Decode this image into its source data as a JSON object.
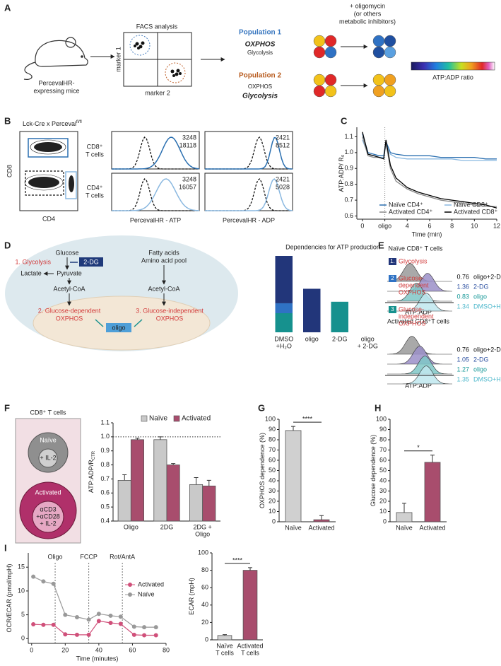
{
  "figure": {
    "A": {
      "letter": "A",
      "mouse": [
        "PercevalHR-",
        "expressing mice"
      ],
      "facs": "FACS analysis",
      "marker1": "marker 1",
      "marker2": "marker 2",
      "pop1": {
        "title": "Population 1",
        "line1": "OXPHOS",
        "line2": "Glycolysis"
      },
      "pop2": {
        "title": "Population 2",
        "line1": "OXPHOS",
        "line2": "Glycolysis"
      },
      "inhibitor": [
        "+ oligomycin",
        "(or others",
        "metabolic inhibitors)"
      ],
      "scale_label": "ATP:ADP ratio"
    },
    "B": {
      "letter": "B",
      "title": "Lck-Cre x Perceval",
      "title_sup": "fl/fl",
      "dot_y": "CD8",
      "dot_x": "CD4",
      "row1": [
        "CD8⁺",
        "T cells"
      ],
      "row2": [
        "CD4⁺",
        "T cells"
      ],
      "counts": [
        [
          3248,
          18118
        ],
        [
          2421,
          8512
        ],
        [
          3248,
          16057
        ],
        [
          2421,
          5028
        ]
      ],
      "xlabel_atp": "PercevalHR - ATP",
      "xlabel_adp": "PercevalHR - ADP"
    },
    "C": {
      "letter": "C"
    },
    "D": {
      "letter": "D",
      "glucose": "Glucose",
      "glycolysis": "1. Glycolysis",
      "two_dg": "2-DG",
      "lactate": "Lactate",
      "pyruvate": "Pyruvate",
      "acetyl1": "Acetyl-CoA",
      "fatty": "Fatty acids",
      "amino": "Amino acid pool",
      "acetyl2": "Acetyl-CoA",
      "gd": [
        "2. Glucose-dependent",
        "OXPHOS"
      ],
      "gi": [
        "3. Glucose-independent",
        "OXPHOS"
      ],
      "oligo": "oligo"
    },
    "E": {
      "letter": "E",
      "naive_title": "Naïve CD8⁺ T cells",
      "act_title": "Activated CD8⁺T cells",
      "conditions": [
        "oligo+2-DG",
        "2-DG",
        "oligo",
        "DMSO+H₂O"
      ],
      "naive_values": [
        0.76,
        1.36,
        0.83,
        1.34
      ],
      "act_values": [
        0.76,
        1.05,
        1.27,
        1.35
      ],
      "xlabel": "ATP:ADP"
    },
    "F": {
      "letter": "F",
      "box_title": "CD8⁺ T cells",
      "naive": "Naïve",
      "naive_treat": "+ IL-2",
      "activated": "Activated",
      "act_treat": [
        "αCD3",
        "+αCD28",
        "+ IL-2"
      ]
    },
    "G": {
      "letter": "G"
    },
    "H": {
      "letter": "H"
    },
    "I": {
      "letter": "I"
    }
  },
  "chart_data": [
    {
      "type": "line",
      "ylabel": "ATP:ADP/ R₀",
      "xlabel": "Time (min)",
      "x": [
        0,
        0.5,
        1,
        1.5,
        1.9,
        2.1,
        2.5,
        3,
        4,
        5,
        6,
        7,
        8,
        9,
        10,
        11,
        12
      ],
      "xlim": [
        -0.5,
        12
      ],
      "xticks": [
        0,
        {
          "value": 2,
          "label": "oligo"
        },
        4,
        6,
        8,
        10,
        12
      ],
      "ylim": [
        0.58,
        1.16
      ],
      "yticks": [
        0.6,
        0.7,
        0.8,
        0.9,
        {
          "value": 1,
          "label": "1.0"
        },
        1.1
      ],
      "label_tick_guides": true,
      "legend": "lower-right",
      "series": [
        {
          "name": "Naïve CD4⁺",
          "color": "#2a6fb0",
          "values": [
            1.12,
            1.0,
            0.99,
            0.98,
            0.98,
            1.07,
            1.0,
            0.99,
            0.98,
            0.98,
            0.98,
            0.97,
            0.97,
            0.97,
            0.97,
            0.96,
            0.96
          ]
        },
        {
          "name": "Naïve CD8⁺",
          "color": "#8ab8e0",
          "values": [
            1.08,
            0.99,
            0.98,
            0.97,
            0.97,
            1.05,
            0.99,
            0.97,
            0.96,
            0.96,
            0.96,
            0.96,
            0.96,
            0.95,
            0.95,
            0.95,
            0.95
          ]
        },
        {
          "name": "Activated CD4⁺",
          "color": "#888888",
          "values": [
            1.1,
            0.98,
            0.97,
            0.97,
            0.96,
            1.06,
            0.9,
            0.82,
            0.77,
            0.74,
            0.72,
            0.7,
            0.69,
            0.68,
            0.67,
            0.66,
            0.66
          ]
        },
        {
          "name": "Activated CD8⁺",
          "color": "#000000",
          "values": [
            1.13,
            0.99,
            0.98,
            0.97,
            0.96,
            1.08,
            0.92,
            0.84,
            0.78,
            0.75,
            0.73,
            0.71,
            0.7,
            0.69,
            0.68,
            0.67,
            0.65
          ]
        }
      ]
    },
    {
      "type": "stacked_bar",
      "title": "Dependencies for ATP production",
      "categories": [
        [
          "DMSO",
          "+H₂O"
        ],
        [
          "oligo"
        ],
        [
          "2-DG"
        ],
        [
          "oligo",
          "+ 2-DG"
        ]
      ],
      "legend": "right",
      "series": [
        {
          "badge": "1.",
          "name": [
            "Glycolysis"
          ],
          "color": "#22367a",
          "values": [
            62,
            57,
            0,
            0
          ]
        },
        {
          "badge": "2",
          "name": [
            "Glucose-",
            "dependent",
            "OXPHOS"
          ],
          "color": "#2f72c4",
          "values": [
            13,
            0,
            0,
            0
          ]
        },
        {
          "badge": "3",
          "name": [
            "Glucose-",
            "independent",
            "OXPHOS"
          ],
          "color": "#16918e",
          "values": [
            25,
            0,
            40,
            0
          ]
        }
      ]
    },
    {
      "type": "bar",
      "ylabel": "ATP:ADP/R",
      "ylabel_subscript": "CTR",
      "categories": [
        [
          "Oligo"
        ],
        [
          "2DG"
        ],
        [
          "2DG +",
          "Oligo"
        ]
      ],
      "ylim": [
        0.4,
        1.1
      ],
      "yticks": [
        0.4,
        0.5,
        0.6,
        0.7,
        0.8,
        0.9,
        {
          "value": 1,
          "label": "1.0"
        },
        1.1
      ],
      "hline": 1,
      "legend": "top",
      "series": [
        {
          "name": "Naïve",
          "color": "#c9c9c9",
          "values": [
            0.69,
            0.98,
            0.66
          ],
          "errors": [
            0.04,
            0.02,
            0.05
          ]
        },
        {
          "name": "Activated",
          "color": "#a84d6d",
          "values": [
            0.98,
            0.8,
            0.65
          ],
          "errors": [
            0.01,
            0.01,
            0.04
          ]
        }
      ]
    },
    {
      "type": "bar",
      "ylabel": "OXPHOS dependence (%)",
      "categories": [
        "Naïve",
        "Activated"
      ],
      "ylim": [
        0,
        100
      ],
      "yticks": [
        0,
        10,
        20,
        30,
        40,
        50,
        60,
        70,
        80,
        90,
        100
      ],
      "annotation": "****",
      "colors": [
        "#d0d0d0",
        "#a84d6d"
      ],
      "values": [
        89,
        2
      ],
      "errors": [
        4,
        4
      ]
    },
    {
      "type": "bar",
      "ylabel": "Glucose dependence (%)",
      "categories": [
        "Naïve",
        "Activated"
      ],
      "ylim": [
        0,
        100
      ],
      "yticks": [
        0,
        10,
        20,
        30,
        40,
        50,
        60,
        70,
        80,
        90,
        100
      ],
      "annotation": "*",
      "colors": [
        "#d0d0d0",
        "#a84d6d"
      ],
      "values": [
        9,
        58
      ],
      "errors": [
        9,
        7
      ]
    },
    {
      "type": "line",
      "ylabel": "OCR/ECAR (pmol/mpH)",
      "xlabel": "Time (minutes)",
      "x": [
        1,
        7,
        13,
        20,
        27,
        34,
        40,
        47,
        53,
        61,
        67,
        74
      ],
      "xlim": [
        -2,
        80
      ],
      "xticks": [
        0,
        20,
        40,
        60,
        80
      ],
      "ylim": [
        -1,
        18
      ],
      "yticks": [
        0,
        5,
        10,
        15
      ],
      "markers": true,
      "events": [
        {
          "value": 14,
          "label": "Oligo"
        },
        {
          "value": 34,
          "label": "FCCP"
        },
        {
          "value": 54,
          "label": "Rot/AntA"
        }
      ],
      "legend": "right",
      "series": [
        {
          "name": "Activated",
          "color": "#d0507a",
          "values": [
            3,
            2.9,
            2.9,
            0.9,
            0.8,
            0.8,
            3.7,
            3.3,
            3.1,
            0.8,
            0.7,
            0.7
          ]
        },
        {
          "name": "Naïve",
          "color": "#999999",
          "values": [
            13,
            12,
            11.5,
            5,
            4.5,
            4,
            5.2,
            4.8,
            4.6,
            2.5,
            2.4,
            2.4
          ]
        }
      ]
    },
    {
      "type": "bar",
      "ylabel": "ECAR (mpH)",
      "categories": [
        [
          "Naïve",
          "T cells"
        ],
        [
          "Activated",
          "T cells"
        ]
      ],
      "ylim": [
        0,
        100
      ],
      "yticks": [
        0,
        20,
        40,
        60,
        80,
        100
      ],
      "annotation": "****",
      "colors": [
        "#d0d0d0",
        "#a84d6d"
      ],
      "values": [
        5,
        80
      ],
      "errors": [
        1,
        3
      ]
    }
  ]
}
